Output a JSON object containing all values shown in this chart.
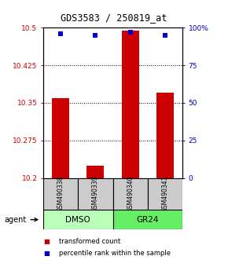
{
  "title": "GDS3583 / 250819_at",
  "samples": [
    "GSM490338",
    "GSM490339",
    "GSM490340",
    "GSM490341"
  ],
  "bar_values": [
    10.36,
    10.225,
    10.495,
    10.37
  ],
  "percentile_values": [
    96,
    95,
    97,
    95
  ],
  "ylim_left": [
    10.2,
    10.5
  ],
  "ylim_right": [
    0,
    100
  ],
  "left_ticks": [
    10.2,
    10.275,
    10.35,
    10.425,
    10.5
  ],
  "right_ticks": [
    0,
    25,
    50,
    75,
    100
  ],
  "right_tick_labels": [
    "0",
    "25",
    "50",
    "75",
    "100%"
  ],
  "bar_color": "#cc0000",
  "dot_color": "#0000cc",
  "groups": [
    {
      "label": "DMSO",
      "color": "#bbffbb"
    },
    {
      "label": "GR24",
      "color": "#66ee66"
    }
  ],
  "agent_label": "agent",
  "legend_items": [
    {
      "color": "#cc0000",
      "label": "transformed count"
    },
    {
      "color": "#0000cc",
      "label": "percentile rank within the sample"
    }
  ],
  "sample_box_color": "#cccccc",
  "bar_width": 0.5
}
